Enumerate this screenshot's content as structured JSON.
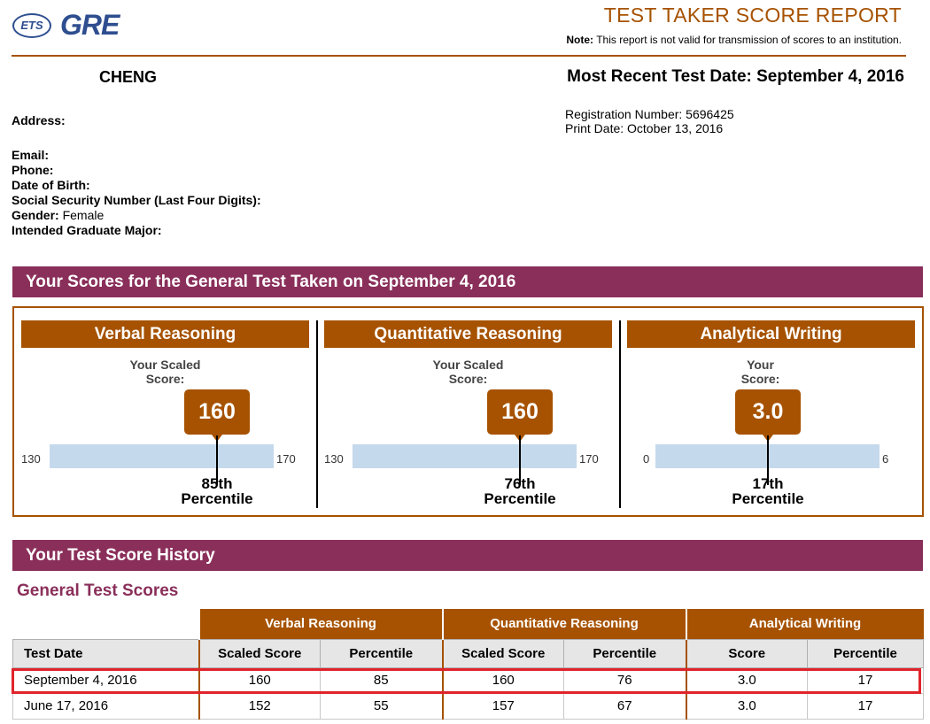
{
  "header": {
    "logo_ets": "ETS",
    "logo_gre": "GRE",
    "title": "TEST TAKER SCORE REPORT",
    "note_label": "Note:",
    "note_text": "This report is not valid for transmission of scores to an institution."
  },
  "candidate": {
    "name": "CHENG",
    "recent_test_date_label": "Most Recent Test Date: September 4, 2016",
    "registration": "Registration Number: 5696425",
    "print_date": "Print Date: October 13, 2016",
    "address_label": "Address:",
    "email_label": "Email:",
    "phone_label": "Phone:",
    "dob_label": "Date of Birth:",
    "ssn_label": "Social Security Number (Last Four Digits):",
    "gender_label": "Gender:",
    "gender_value": "Female",
    "major_label": "Intended Graduate Major:"
  },
  "scores_section": {
    "title": "Your Scores for the General Test Taken on September 4, 2016",
    "panels": [
      {
        "name": "Verbal Reasoning",
        "label_line1": "Your Scaled",
        "label_line2": "Score:",
        "score": "160",
        "min": "130",
        "max": "170",
        "percentile": "85th",
        "percentile_word": "Percentile"
      },
      {
        "name": "Quantitative Reasoning",
        "label_line1": "Your Scaled",
        "label_line2": "Score:",
        "score": "160",
        "min": "130",
        "max": "170",
        "percentile": "76th",
        "percentile_word": "Percentile"
      },
      {
        "name": "Analytical Writing",
        "label_line1": "Your",
        "label_line2": "Score:",
        "score": "3.0",
        "min": "0",
        "max": "6",
        "percentile": "17th",
        "percentile_word": "Percentile"
      }
    ]
  },
  "history": {
    "title": "Your Test Score History",
    "subtitle": "General Test Scores",
    "groups": [
      "Verbal Reasoning",
      "Quantitative Reasoning",
      "Analytical Writing"
    ],
    "columns": [
      "Test Date",
      "Scaled Score",
      "Percentile",
      "Scaled Score",
      "Percentile",
      "Score",
      "Percentile"
    ],
    "rows": [
      [
        "September 4, 2016",
        "160",
        "85",
        "160",
        "76",
        "3.0",
        "17"
      ],
      [
        "June 17, 2016",
        "152",
        "55",
        "157",
        "67",
        "3.0",
        "17"
      ]
    ]
  },
  "colors": {
    "accent_brown": "#a65200",
    "section_purple": "#8a2f5a",
    "highlight_red": "#e0242c",
    "scale_blue": "#c5d9ec"
  }
}
